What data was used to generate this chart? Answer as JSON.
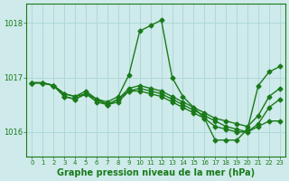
{
  "series": [
    [
      1016.9,
      1016.9,
      1016.85,
      1016.7,
      1016.65,
      1016.75,
      1016.6,
      1016.55,
      1016.65,
      1017.05,
      1017.85,
      1017.95,
      1018.05,
      1017.0,
      1016.65,
      1016.45,
      1016.25,
      1015.85,
      1015.85,
      1015.85,
      1016.05,
      1016.85,
      1017.1,
      1017.2
    ],
    [
      1016.9,
      1016.9,
      1016.85,
      1016.7,
      1016.65,
      1016.7,
      1016.6,
      1016.5,
      1016.55,
      1016.75,
      1016.8,
      1016.75,
      1016.7,
      1016.6,
      1016.5,
      1016.4,
      1016.3,
      1016.2,
      1016.1,
      1016.05,
      1016.0,
      1016.1,
      1016.2,
      1016.2
    ],
    [
      1016.9,
      1016.9,
      1016.85,
      1016.65,
      1016.6,
      1016.7,
      1016.55,
      1016.5,
      1016.6,
      1016.8,
      1016.85,
      1016.8,
      1016.75,
      1016.65,
      1016.55,
      1016.45,
      1016.35,
      1016.25,
      1016.2,
      1016.15,
      1016.1,
      1016.3,
      1016.65,
      1016.8
    ],
    [
      1016.9,
      1016.9,
      1016.85,
      1016.65,
      1016.6,
      1016.7,
      1016.6,
      1016.5,
      1016.6,
      1016.75,
      1016.75,
      1016.7,
      1016.65,
      1016.55,
      1016.45,
      1016.35,
      1016.25,
      1016.1,
      1016.05,
      1016.0,
      1016.0,
      1016.15,
      1016.45,
      1016.6
    ]
  ],
  "x": [
    0,
    1,
    2,
    3,
    4,
    5,
    6,
    7,
    8,
    9,
    10,
    11,
    12,
    13,
    14,
    15,
    16,
    17,
    18,
    19,
    20,
    21,
    22,
    23
  ],
  "line_color": "#1a7a1a",
  "marker": "D",
  "markersize": 2.5,
  "linewidth": 1.0,
  "xlabel": "Graphe pression niveau de la mer (hPa)",
  "ylim": [
    1015.55,
    1018.35
  ],
  "xlim": [
    -0.5,
    23.5
  ],
  "yticks": [
    1016,
    1017,
    1018
  ],
  "xticks": [
    0,
    1,
    2,
    3,
    4,
    5,
    6,
    7,
    8,
    9,
    10,
    11,
    12,
    13,
    14,
    15,
    16,
    17,
    18,
    19,
    20,
    21,
    22,
    23
  ],
  "xtick_labels": [
    "0",
    "1",
    "2",
    "3",
    "4",
    "5",
    "6",
    "7",
    "8",
    "9",
    "10",
    "11",
    "12",
    "13",
    "14",
    "15",
    "16",
    "17",
    "18",
    "19",
    "20",
    "21",
    "22",
    "23"
  ],
  "bg_color": "#ceeaea",
  "grid_color": "#b0d8d8",
  "tick_color": "#1a7a1a",
  "label_color": "#1a7a1a",
  "xlabel_fontsize": 7.0,
  "xlabel_fontweight": "bold"
}
